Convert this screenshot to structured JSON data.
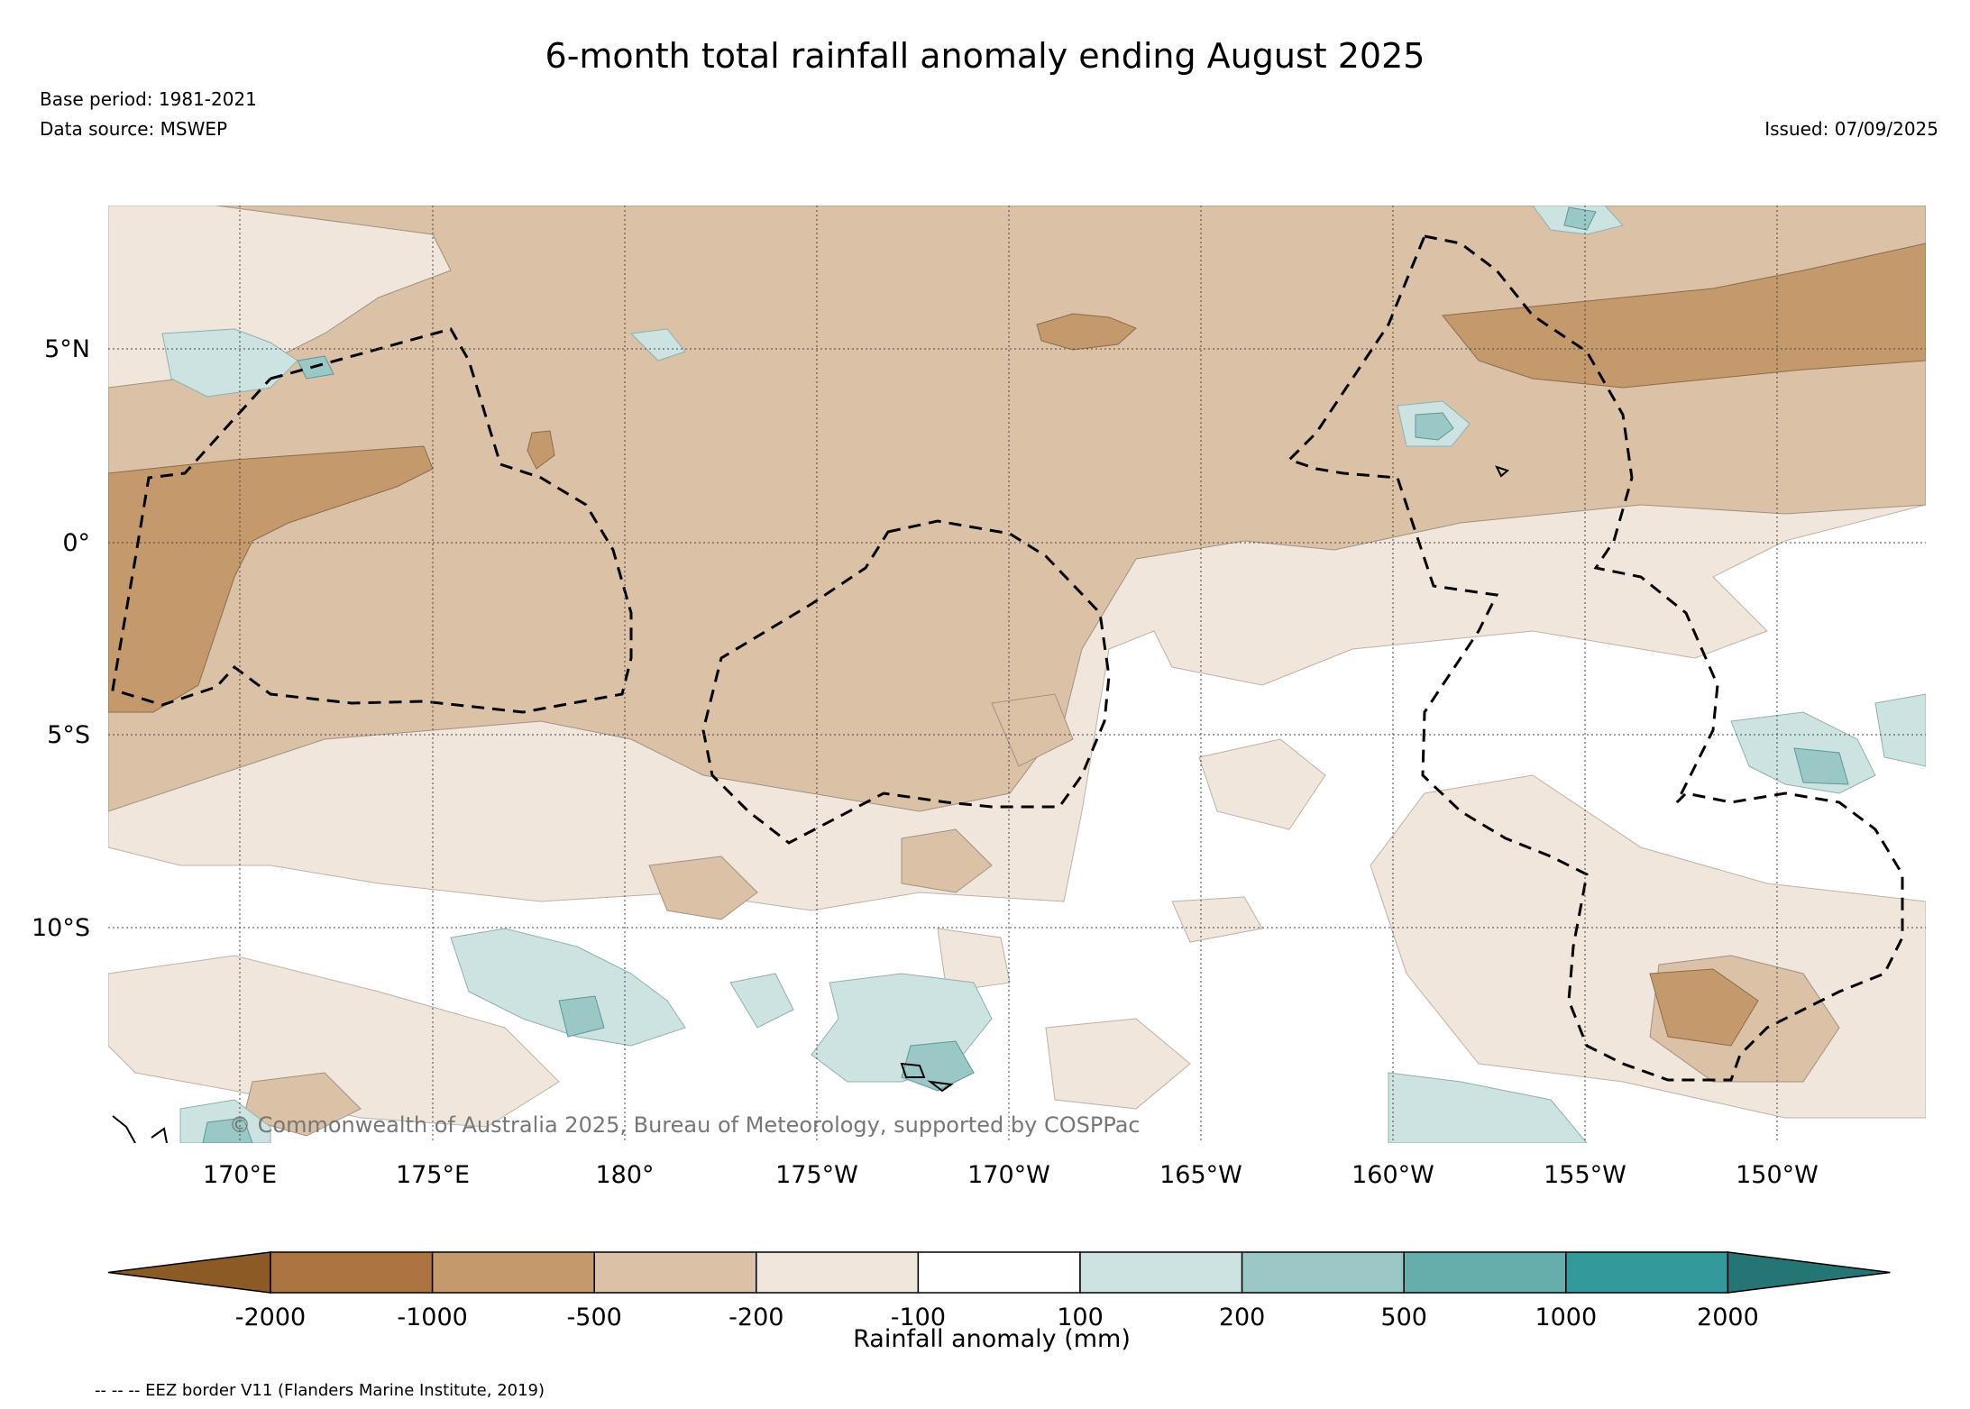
{
  "title": "6-month total rainfall anomaly ending August 2025",
  "base_period": "Base period: 1981-2021",
  "data_source": "Data source: MSWEP",
  "issued": "Issued: 07/09/2025",
  "copyright": "© Commonwealth of Australia 2025, Bureau of Meteorology, supported by COSPPac",
  "lat_labels": [
    "5°N",
    "0°",
    "5°S",
    "10°S"
  ],
  "lon_labels": [
    "170°E",
    "175°E",
    "180°",
    "175°W",
    "170°W",
    "165°W",
    "160°W",
    "155°W",
    "150°W"
  ],
  "legend": {
    "title": "Rainfall anomaly (mm)",
    "ticks": [
      "-2000",
      "-1000",
      "-500",
      "-200",
      "-100",
      "100",
      "200",
      "500",
      "1000",
      "2000"
    ],
    "colors": [
      "#8c5a24",
      "#ab7440",
      "#c49a6c",
      "#dbc1a6",
      "#f0e6dc",
      "#ffffff",
      "#cce3e2",
      "#99c8c6",
      "#66aeac",
      "#33999a",
      "#267575"
    ]
  },
  "footnote": "-- -- -- EEZ border V11 (Flanders Marine Institute, 2019)"
}
